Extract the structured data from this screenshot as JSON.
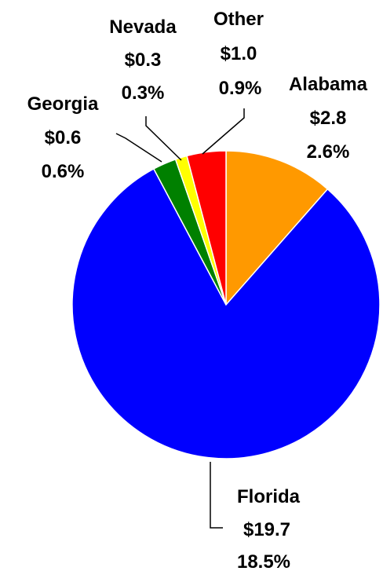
{
  "chart_data": {
    "type": "pie",
    "title": "",
    "start_angle_deg": 0,
    "direction": "clockwise",
    "slices": [
      {
        "name": "Florida",
        "value": "$19.7",
        "percent": "18.5%",
        "amount": 19.7,
        "color": "#0000ff"
      },
      {
        "name": "Georgia",
        "value": "$0.6",
        "percent": "0.6%",
        "amount": 0.6,
        "color": "#008000"
      },
      {
        "name": "Nevada",
        "value": "$0.3",
        "percent": "0.3%",
        "amount": 0.3,
        "color": "#ffff00"
      },
      {
        "name": "Other",
        "value": "$1.0",
        "percent": "0.9%",
        "amount": 1.0,
        "color": "#ff0000"
      },
      {
        "name": "Alabama",
        "value": "$2.8",
        "percent": "2.6%",
        "amount": 2.8,
        "color": "#ff9900"
      }
    ]
  }
}
